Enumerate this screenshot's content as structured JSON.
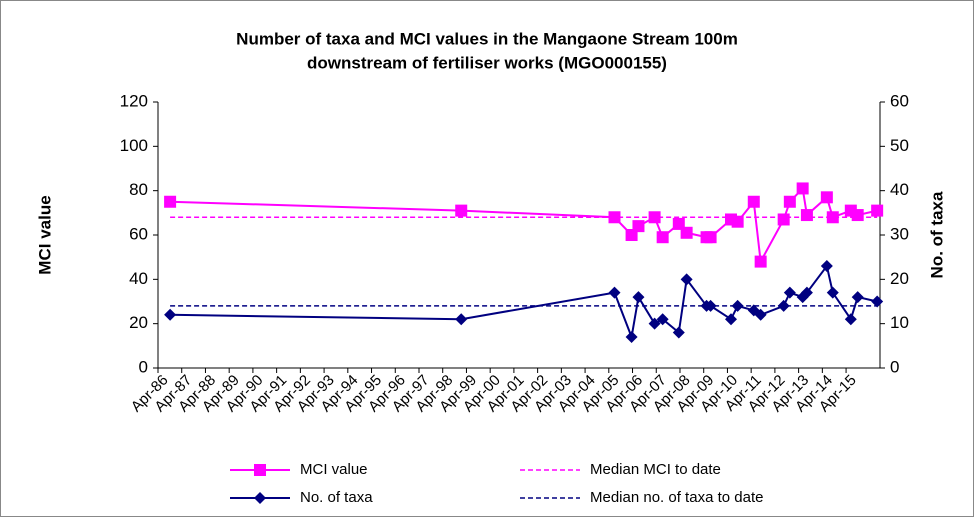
{
  "chart_data": {
    "type": "line",
    "title": "Number of taxa and MCI values in the  Mangaone Stream 100m downstream of fertiliser works (MGO000155)",
    "ylabel": "MCI value",
    "y2label": "No. of taxa",
    "x": [
      1986.76,
      1999.03,
      2005.49,
      2006.21,
      2006.5,
      2007.18,
      2007.52,
      2008.2,
      2008.53,
      2009.37,
      2009.54,
      2010.4,
      2010.68,
      2011.36,
      2011.65,
      2012.62,
      2012.88,
      2013.42,
      2013.6,
      2014.44,
      2014.69,
      2015.45,
      2015.74,
      2016.56
    ],
    "series": [
      {
        "name": "MCI value",
        "color": "#ff00ff",
        "marker": "square",
        "axis": "y",
        "values": [
          75,
          71,
          68,
          60,
          64,
          68,
          59,
          65,
          61,
          59,
          59,
          67,
          66,
          75,
          48,
          67,
          75,
          81,
          69,
          77,
          68,
          71,
          69,
          71
        ]
      },
      {
        "name": "No. of taxa",
        "color": "#000080",
        "marker": "diamond",
        "axis": "y2",
        "values": [
          12,
          11,
          17,
          7,
          16,
          10,
          11,
          8,
          20,
          14,
          14,
          11,
          14,
          13,
          12,
          14,
          17,
          16,
          17,
          23,
          17,
          11,
          16,
          15
        ]
      }
    ],
    "medians": [
      {
        "name": "Median MCI to date",
        "color": "#ff00ff",
        "axis": "y",
        "value": 68
      },
      {
        "name": "Median no. of taxa to date",
        "color": "#000080",
        "axis": "y2",
        "value": 14
      }
    ],
    "xlim": [
      1986.25,
      2016.68
    ],
    "xticks": [
      {
        "value": 1986.25,
        "label": "Apr-86"
      },
      {
        "value": 1987.25,
        "label": "Apr-87"
      },
      {
        "value": 1988.25,
        "label": "Apr-88"
      },
      {
        "value": 1989.25,
        "label": "Apr-89"
      },
      {
        "value": 1990.25,
        "label": "Apr-90"
      },
      {
        "value": 1991.25,
        "label": "Apr-91"
      },
      {
        "value": 1992.25,
        "label": "Apr-92"
      },
      {
        "value": 1993.25,
        "label": "Apr-93"
      },
      {
        "value": 1994.25,
        "label": "Apr-94"
      },
      {
        "value": 1995.25,
        "label": "Apr-95"
      },
      {
        "value": 1996.25,
        "label": "Apr-96"
      },
      {
        "value": 1997.25,
        "label": "Apr-97"
      },
      {
        "value": 1998.25,
        "label": "Apr-98"
      },
      {
        "value": 1999.25,
        "label": "Apr-99"
      },
      {
        "value": 2000.25,
        "label": "Apr-00"
      },
      {
        "value": 2001.25,
        "label": "Apr-01"
      },
      {
        "value": 2002.25,
        "label": "Apr-02"
      },
      {
        "value": 2003.25,
        "label": "Apr-03"
      },
      {
        "value": 2004.25,
        "label": "Apr-04"
      },
      {
        "value": 2005.25,
        "label": "Apr-05"
      },
      {
        "value": 2006.25,
        "label": "Apr-06"
      },
      {
        "value": 2007.25,
        "label": "Apr-07"
      },
      {
        "value": 2008.25,
        "label": "Apr-08"
      },
      {
        "value": 2009.25,
        "label": "Apr-09"
      },
      {
        "value": 2010.25,
        "label": "Apr-10"
      },
      {
        "value": 2011.25,
        "label": "Apr-11"
      },
      {
        "value": 2012.25,
        "label": "Apr-12"
      },
      {
        "value": 2013.25,
        "label": "Apr-13"
      },
      {
        "value": 2014.25,
        "label": "Apr-14"
      },
      {
        "value": 2015.25,
        "label": "Apr-15"
      }
    ],
    "ylim": [
      0,
      120
    ],
    "yticks": [
      0,
      20,
      40,
      60,
      80,
      100,
      120
    ],
    "y2lim": [
      0,
      60
    ],
    "y2ticks": [
      0,
      10,
      20,
      30,
      40,
      50,
      60
    ]
  }
}
